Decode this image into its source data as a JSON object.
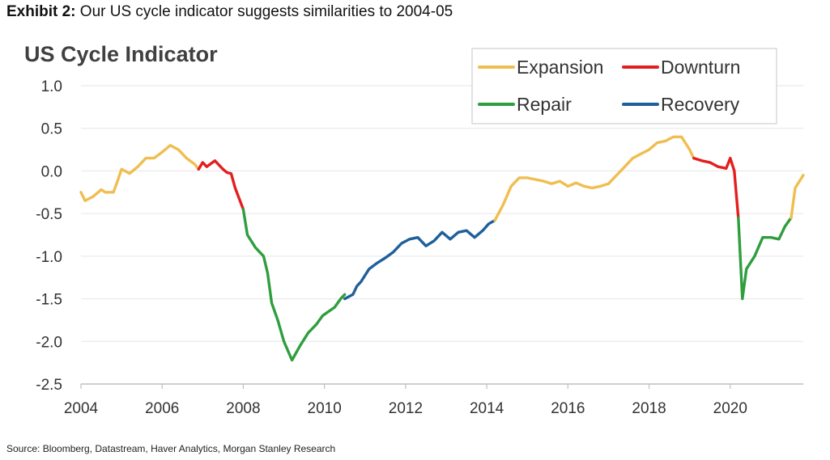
{
  "exhibit": {
    "label": "Exhibit 2:",
    "text": "Our US cycle indicator suggests similarities to 2004-05"
  },
  "source": "Source: Bloomberg, Datastream, Haver Analytics, Morgan Stanley Research",
  "phase_colors": {
    "Expansion": "#F0BE50",
    "Downturn": "#E41E1E",
    "Repair": "#2E9E3E",
    "Recovery": "#1F5F9A"
  },
  "chart_data": {
    "type": "line",
    "title": "US Cycle Indicator",
    "xlabel": "",
    "ylabel": "",
    "xlim": [
      2004.0,
      2021.8
    ],
    "ylim": [
      -2.5,
      1.0
    ],
    "x_ticks": [
      "2004",
      "2006",
      "2008",
      "2010",
      "2012",
      "2014",
      "2016",
      "2018",
      "2020"
    ],
    "y_ticks": [
      "1.0",
      "0.5",
      "0.0",
      "-0.5",
      "-1.0",
      "-1.5",
      "-2.0",
      "-2.5"
    ],
    "grid": true,
    "legend": [
      "Expansion",
      "Downturn",
      "Repair",
      "Recovery"
    ],
    "legend_position": "top-right",
    "series": [
      {
        "name": "Expansion",
        "points": [
          [
            2004.0,
            -0.25
          ],
          [
            2004.1,
            -0.35
          ],
          [
            2004.3,
            -0.3
          ],
          [
            2004.5,
            -0.22
          ],
          [
            2004.6,
            -0.25
          ],
          [
            2004.8,
            -0.25
          ],
          [
            2004.9,
            -0.12
          ],
          [
            2005.0,
            0.02
          ],
          [
            2005.2,
            -0.03
          ],
          [
            2005.4,
            0.05
          ],
          [
            2005.6,
            0.15
          ],
          [
            2005.8,
            0.15
          ],
          [
            2006.0,
            0.22
          ],
          [
            2006.2,
            0.3
          ],
          [
            2006.4,
            0.25
          ],
          [
            2006.6,
            0.15
          ],
          [
            2006.8,
            0.08
          ],
          [
            2006.9,
            0.02
          ]
        ]
      },
      {
        "name": "Downturn",
        "points": [
          [
            2006.9,
            0.02
          ],
          [
            2007.0,
            0.1
          ],
          [
            2007.1,
            0.05
          ],
          [
            2007.3,
            0.12
          ],
          [
            2007.5,
            0.02
          ],
          [
            2007.6,
            -0.02
          ],
          [
            2007.7,
            -0.03
          ],
          [
            2007.8,
            -0.2
          ],
          [
            2008.0,
            -0.45
          ]
        ]
      },
      {
        "name": "Repair",
        "points": [
          [
            2008.0,
            -0.45
          ],
          [
            2008.1,
            -0.75
          ],
          [
            2008.3,
            -0.9
          ],
          [
            2008.5,
            -1.0
          ],
          [
            2008.6,
            -1.2
          ],
          [
            2008.7,
            -1.55
          ],
          [
            2008.85,
            -1.75
          ],
          [
            2009.0,
            -2.0
          ],
          [
            2009.2,
            -2.22
          ],
          [
            2009.4,
            -2.05
          ],
          [
            2009.6,
            -1.9
          ],
          [
            2009.8,
            -1.8
          ],
          [
            2009.95,
            -1.7
          ],
          [
            2010.1,
            -1.65
          ],
          [
            2010.25,
            -1.6
          ],
          [
            2010.4,
            -1.5
          ],
          [
            2010.5,
            -1.45
          ]
        ]
      },
      {
        "name": "Recovery",
        "points": [
          [
            2010.5,
            -1.5
          ],
          [
            2010.7,
            -1.45
          ],
          [
            2010.8,
            -1.35
          ],
          [
            2010.9,
            -1.3
          ],
          [
            2011.1,
            -1.15
          ],
          [
            2011.3,
            -1.08
          ],
          [
            2011.5,
            -1.02
          ],
          [
            2011.7,
            -0.95
          ],
          [
            2011.9,
            -0.85
          ],
          [
            2012.1,
            -0.8
          ],
          [
            2012.3,
            -0.78
          ],
          [
            2012.5,
            -0.88
          ],
          [
            2012.7,
            -0.82
          ],
          [
            2012.9,
            -0.72
          ],
          [
            2013.1,
            -0.8
          ],
          [
            2013.3,
            -0.72
          ],
          [
            2013.5,
            -0.7
          ],
          [
            2013.7,
            -0.78
          ],
          [
            2013.9,
            -0.7
          ],
          [
            2014.05,
            -0.62
          ],
          [
            2014.2,
            -0.58
          ]
        ]
      },
      {
        "name": "Expansion",
        "points": [
          [
            2014.2,
            -0.58
          ],
          [
            2014.4,
            -0.4
          ],
          [
            2014.6,
            -0.18
          ],
          [
            2014.8,
            -0.08
          ],
          [
            2015.0,
            -0.08
          ],
          [
            2015.2,
            -0.1
          ],
          [
            2015.4,
            -0.12
          ],
          [
            2015.6,
            -0.15
          ],
          [
            2015.8,
            -0.12
          ],
          [
            2016.0,
            -0.18
          ],
          [
            2016.2,
            -0.14
          ],
          [
            2016.4,
            -0.18
          ],
          [
            2016.6,
            -0.2
          ],
          [
            2016.8,
            -0.18
          ],
          [
            2017.0,
            -0.15
          ],
          [
            2017.2,
            -0.05
          ],
          [
            2017.4,
            0.05
          ],
          [
            2017.6,
            0.15
          ],
          [
            2017.8,
            0.2
          ],
          [
            2018.0,
            0.25
          ],
          [
            2018.2,
            0.33
          ],
          [
            2018.4,
            0.35
          ],
          [
            2018.6,
            0.4
          ],
          [
            2018.8,
            0.4
          ],
          [
            2019.0,
            0.25
          ],
          [
            2019.1,
            0.15
          ]
        ]
      },
      {
        "name": "Downturn",
        "points": [
          [
            2019.1,
            0.15
          ],
          [
            2019.3,
            0.12
          ],
          [
            2019.5,
            0.1
          ],
          [
            2019.7,
            0.05
          ],
          [
            2019.9,
            0.03
          ],
          [
            2020.0,
            0.15
          ],
          [
            2020.1,
            0.0
          ],
          [
            2020.2,
            -0.55
          ]
        ]
      },
      {
        "name": "Repair",
        "points": [
          [
            2020.2,
            -0.55
          ],
          [
            2020.3,
            -1.5
          ],
          [
            2020.4,
            -1.15
          ],
          [
            2020.6,
            -1.0
          ],
          [
            2020.8,
            -0.78
          ],
          [
            2021.0,
            -0.78
          ],
          [
            2021.2,
            -0.8
          ],
          [
            2021.35,
            -0.65
          ],
          [
            2021.5,
            -0.55
          ]
        ]
      },
      {
        "name": "Expansion",
        "points": [
          [
            2021.5,
            -0.55
          ],
          [
            2021.6,
            -0.2
          ],
          [
            2021.8,
            -0.05
          ]
        ]
      }
    ]
  }
}
